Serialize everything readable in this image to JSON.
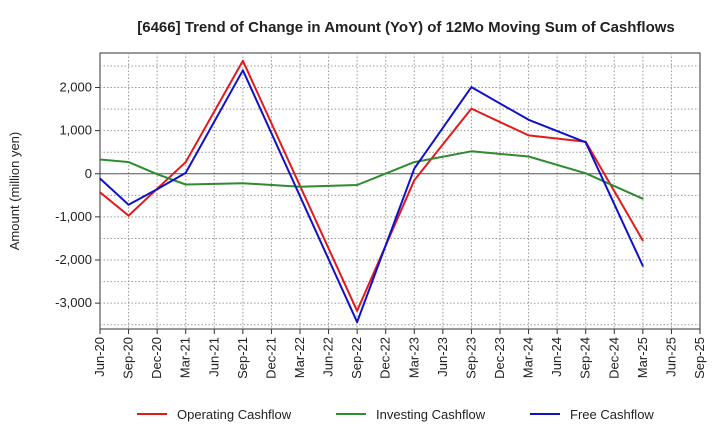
{
  "chart_data": {
    "type": "line",
    "title": "[6466]  Trend of Change in Amount (YoY) of 12Mo Moving Sum of Cashflows",
    "ylabel": "Amount (million yen)",
    "xlabel": "",
    "ylim": [
      -3600,
      2800
    ],
    "yticks": [
      -3000,
      -2000,
      -1000,
      0,
      1000,
      2000
    ],
    "ytick_labels": [
      "-3,000",
      "-2,000",
      "-1,000",
      "0",
      "1,000",
      "2,000"
    ],
    "categories": [
      "Jun-20",
      "Sep-20",
      "Dec-20",
      "Mar-21",
      "Jun-21",
      "Sep-21",
      "Dec-21",
      "Mar-22",
      "Jun-22",
      "Sep-22",
      "Dec-22",
      "Mar-23",
      "Jun-23",
      "Sep-23",
      "Dec-23",
      "Mar-24",
      "Jun-24",
      "Sep-24",
      "Dec-24",
      "Mar-25",
      "Jun-25",
      "Sep-25"
    ],
    "grid": true,
    "legend_position": "bottom",
    "series": [
      {
        "name": "Operating Cashflow",
        "color": "#e31a1c",
        "values": [
          -430,
          -970,
          -350,
          270,
          null,
          2620,
          null,
          null,
          null,
          -3180,
          null,
          -150,
          null,
          1510,
          null,
          890,
          null,
          740,
          null,
          -1550,
          null,
          null
        ]
      },
      {
        "name": "Investing Cashflow",
        "color": "#2e8b2e",
        "values": [
          330,
          270,
          -10,
          -250,
          null,
          -220,
          null,
          -300,
          null,
          -260,
          null,
          270,
          null,
          520,
          null,
          400,
          null,
          10,
          null,
          -580,
          null,
          null
        ]
      },
      {
        "name": "Free Cashflow",
        "color": "#1111cc",
        "values": [
          -110,
          -720,
          -360,
          20,
          null,
          2400,
          null,
          null,
          null,
          -3440,
          null,
          120,
          null,
          2010,
          null,
          1250,
          null,
          730,
          null,
          -2140,
          null,
          null
        ]
      }
    ]
  }
}
